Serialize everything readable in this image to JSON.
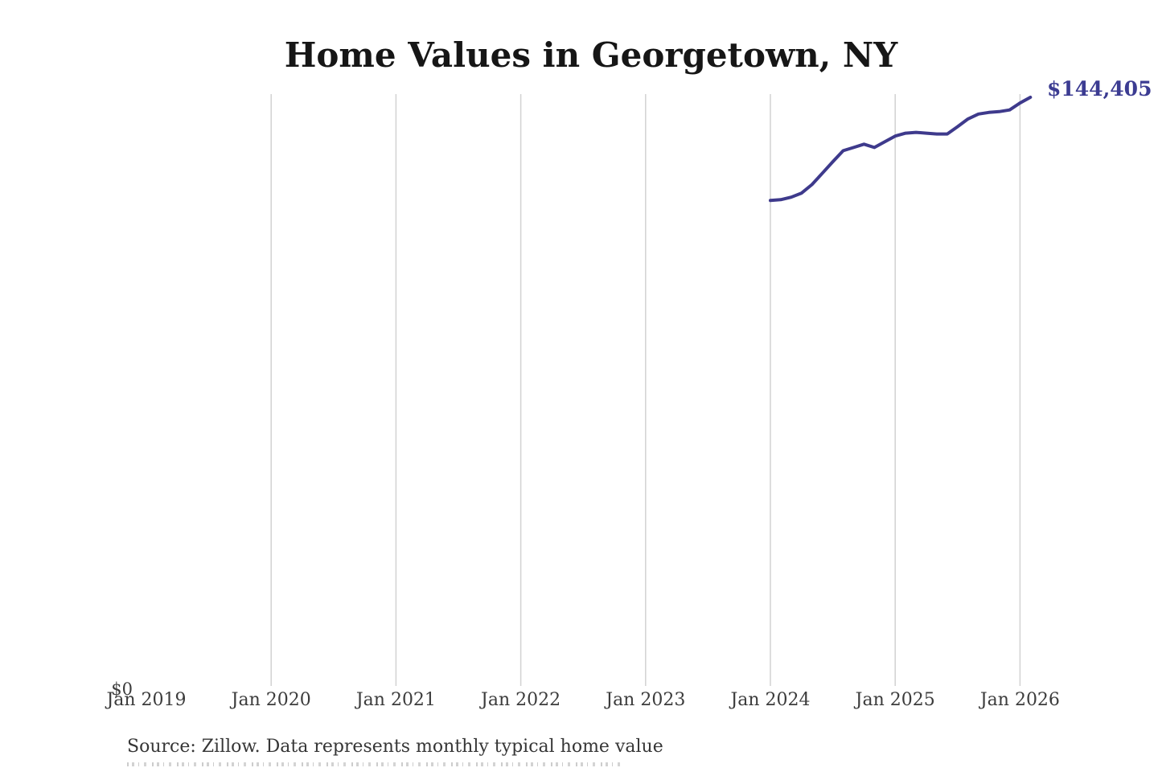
{
  "chart": {
    "title": "Home Values in Georgetown, NY",
    "y_zero_label": "$0",
    "end_label": "$144,405",
    "source": "Source: Zillow. Data represents monthly typical home value"
  },
  "colors": {
    "background": "#ffffff",
    "line": "#3e3a8c",
    "annotation": "#3c3c92",
    "gridline": "#d2d2d2",
    "title": "#161616",
    "axis_labels": "#3c3c3c",
    "source_text": "#363636"
  },
  "chart_data": {
    "type": "line",
    "title": "Home Values in Georgetown, NY",
    "xlabel": "",
    "ylabel": "",
    "grid": "vertical-year-gridlines",
    "legend_position": "none",
    "ylim": [
      0,
      150000
    ],
    "y_axis_tick_labels": [
      "$0"
    ],
    "x_axis_tick_labels": [
      "Jan 2019",
      "Jan 2020",
      "Jan 2021",
      "Jan 2022",
      "Jan 2023",
      "Jan 2024",
      "Jan 2025",
      "Jan 2026"
    ],
    "end_annotation": "$144,405",
    "source_note": "Source: Zillow. Data represents monthly typical home value",
    "x": [
      "Jan 2024",
      "Feb 2024",
      "Mar 2024",
      "Apr 2024",
      "May 2024",
      "Jun 2024",
      "Jul 2024",
      "Aug 2024",
      "Sep 2024",
      "Oct 2024",
      "Nov 2024",
      "Dec 2024",
      "Jan 2025",
      "Feb 2025",
      "Mar 2025",
      "Apr 2025",
      "May 2025",
      "Jun 2025",
      "Jul 2025",
      "Aug 2025",
      "Sep 2025",
      "Oct 2025",
      "Nov 2025",
      "Dec 2025",
      "Jan 2026",
      "Feb 2026"
    ],
    "series": [
      {
        "name": "Monthly typical home value ($)",
        "values": [
          119100,
          119300,
          119900,
          120900,
          123000,
          125800,
          128600,
          131300,
          132100,
          132900,
          132100,
          133500,
          134900,
          135600,
          135800,
          135600,
          135400,
          135400,
          137200,
          139100,
          140300,
          140700,
          140900,
          141300,
          143000,
          144405
        ]
      }
    ]
  }
}
